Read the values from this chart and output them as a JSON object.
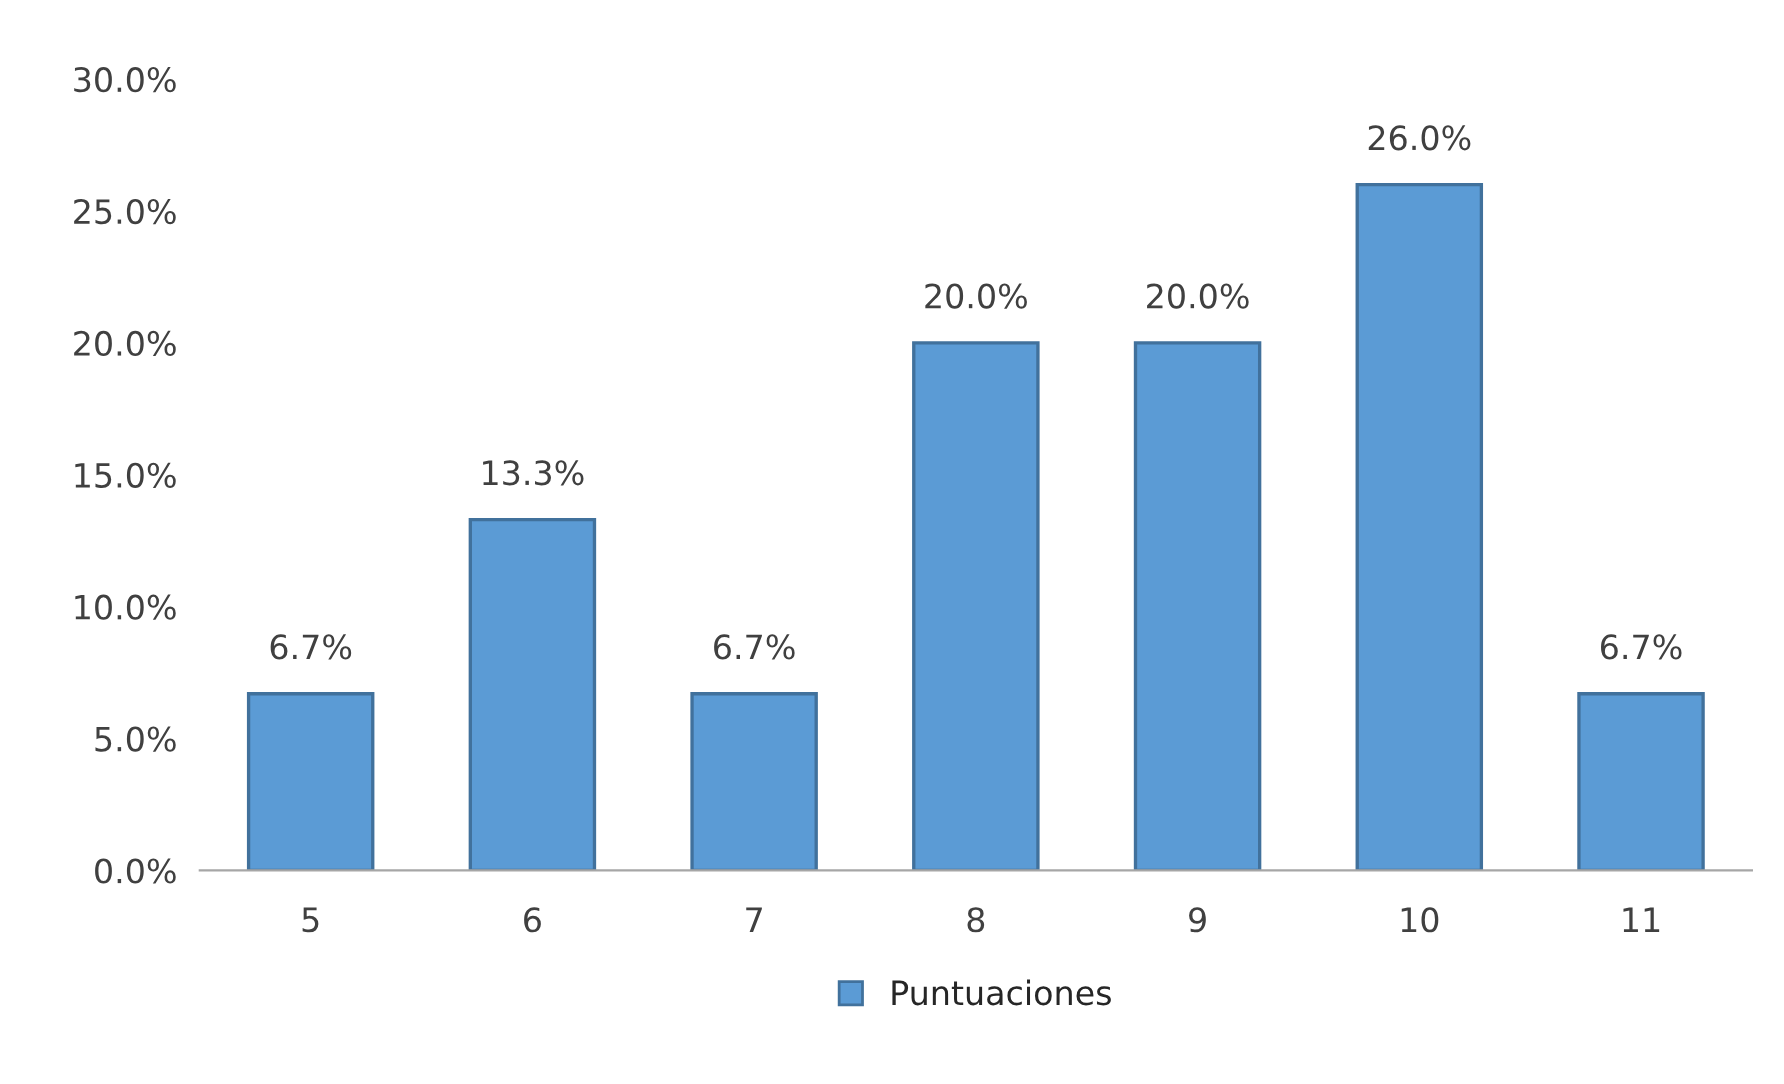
{
  "chart_data": {
    "type": "bar",
    "categories": [
      "5",
      "6",
      "7",
      "8",
      "9",
      "10",
      "11"
    ],
    "series": [
      {
        "name": "Puntuaciones",
        "color": "#5b9bd5",
        "values": [
          6.7,
          13.3,
          6.7,
          20.0,
          20.0,
          26.0,
          6.7
        ],
        "value_labels": [
          "6.7%",
          "13.3%",
          "6.7%",
          "20.0%",
          "20.0%",
          "26.0%",
          "6.7%"
        ]
      }
    ],
    "ylim": [
      0,
      30
    ],
    "yticks": [
      {
        "value": 0,
        "label": "0.0%"
      },
      {
        "value": 5,
        "label": "5.0%"
      },
      {
        "value": 10,
        "label": "10.0%"
      },
      {
        "value": 15,
        "label": "15.0%"
      },
      {
        "value": 20,
        "label": "20.0%"
      },
      {
        "value": 25,
        "label": "25.0%"
      },
      {
        "value": 30,
        "label": "30.0%"
      }
    ],
    "grid": false,
    "legend": "bottom"
  }
}
